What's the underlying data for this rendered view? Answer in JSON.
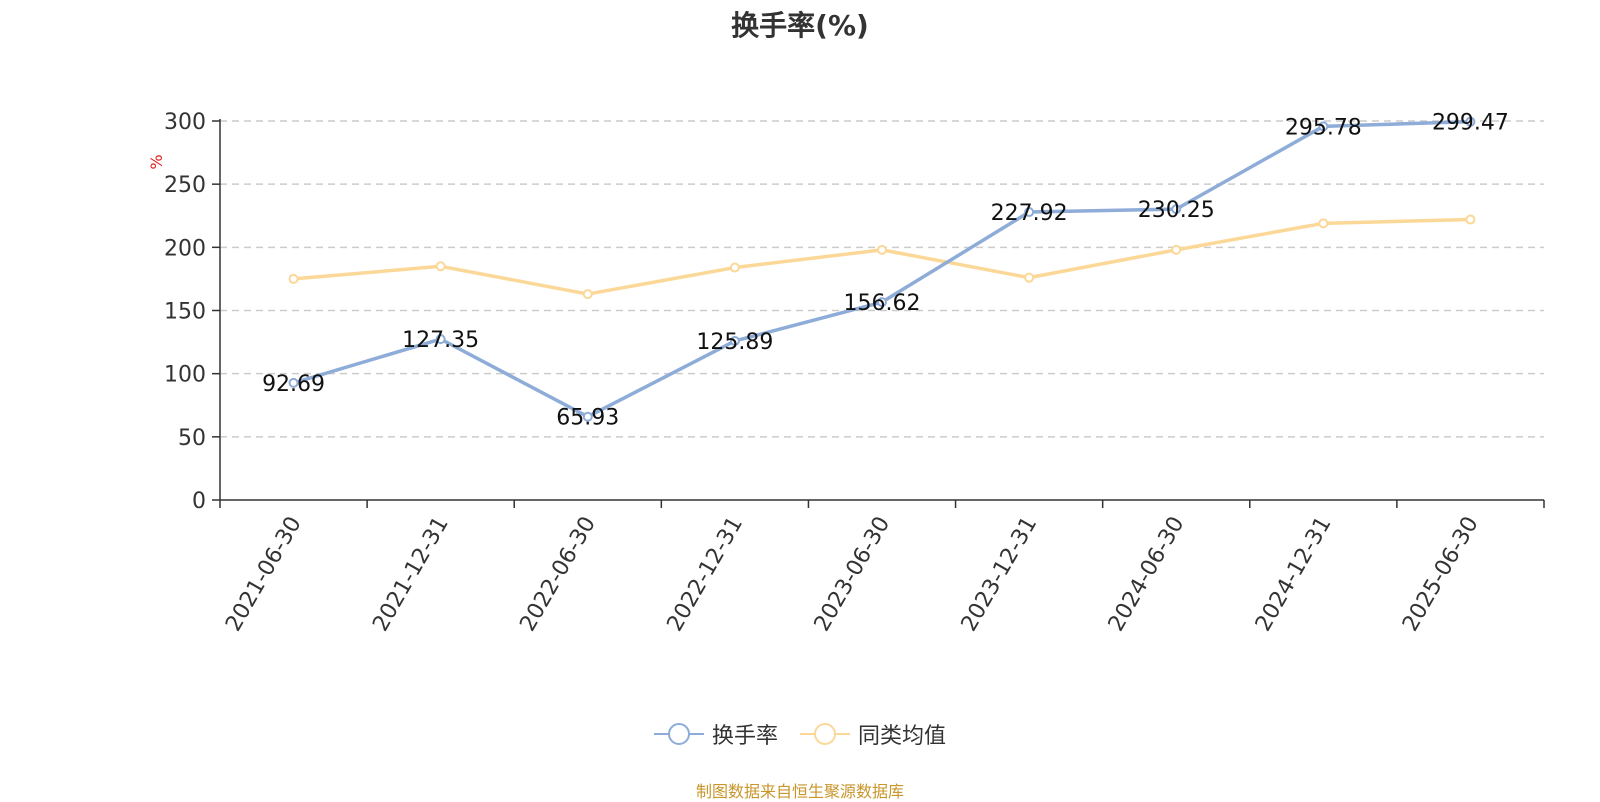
{
  "chart_data": {
    "type": "line",
    "title": "换手率(%)",
    "ylabel": "%",
    "xlabel": "",
    "categories": [
      "2021-06-30",
      "2021-12-31",
      "2022-06-30",
      "2022-12-31",
      "2023-06-30",
      "2023-12-31",
      "2024-06-30",
      "2024-12-31",
      "2025-06-30"
    ],
    "ylim": [
      0,
      300
    ],
    "yticks": [
      0,
      50,
      100,
      150,
      200,
      250,
      300
    ],
    "grid": true,
    "legend_position": "bottom",
    "series": [
      {
        "name": "换手率",
        "color": "#8eacd8",
        "values": [
          92.69,
          127.35,
          65.93,
          125.89,
          156.62,
          227.92,
          230.25,
          295.78,
          299.47
        ],
        "labels": [
          "92.69",
          "127.35",
          "65.93",
          "125.89",
          "156.62",
          "227.92",
          "230.25",
          "295.78",
          "299.47"
        ]
      },
      {
        "name": "同类均值",
        "color": "#fbd898",
        "values": [
          175,
          185,
          163,
          184,
          198,
          176,
          198,
          219,
          222
        ]
      }
    ]
  },
  "source_note": "制图数据来自恒生聚源数据库",
  "colors": {
    "axis": "#333333",
    "grid": "#cccccc",
    "ylabel": "#e02020",
    "text": "#333333",
    "source": "#c8962a"
  }
}
